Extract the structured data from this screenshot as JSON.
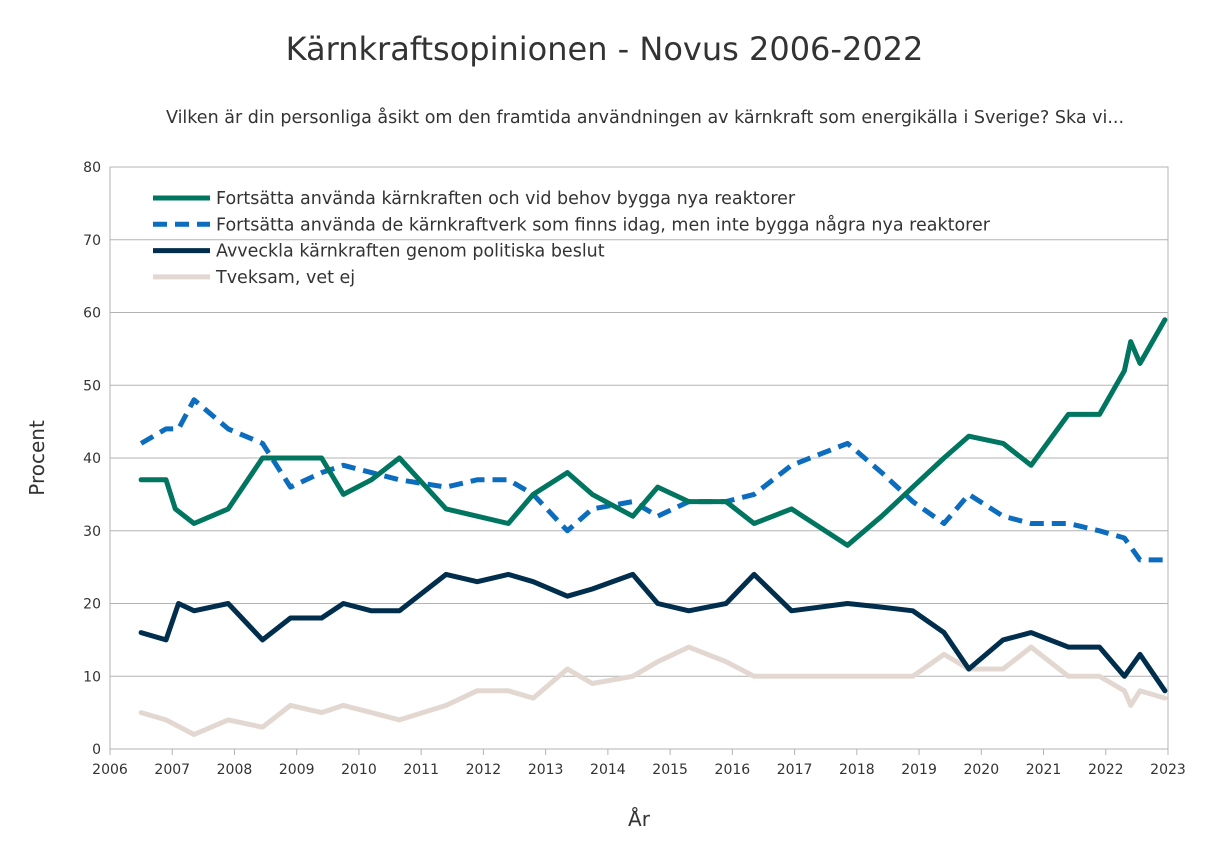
{
  "chart_data": {
    "type": "line",
    "title": "Kärnkraftsopinionen - Novus 2006-2022",
    "subtitle": "Vilken är din personliga åsikt om den framtida användningen av kärnkraft som energikälla i Sverige? Ska vi...",
    "xlabel": "År",
    "ylabel": "Procent",
    "xlim": [
      2006,
      2023
    ],
    "ylim": [
      0,
      80
    ],
    "x_ticks": [
      "2006",
      "2007",
      "2008",
      "2009",
      "2010",
      "2011",
      "2012",
      "2013",
      "2014",
      "2015",
      "2016",
      "2017",
      "2018",
      "2019",
      "2020",
      "2021",
      "2022",
      "2023"
    ],
    "y_ticks": [
      "0",
      "10",
      "20",
      "30",
      "40",
      "50",
      "60",
      "70",
      "80"
    ],
    "grid": true,
    "legend_position": "top-left",
    "series": [
      {
        "name": "Fortsätta använda kärnkraften och vid behov bygga nya reaktorer",
        "color": "#007560",
        "style": "solid",
        "x": [
          2006.5,
          2006.9,
          2007.05,
          2007.35,
          2007.9,
          2008.45,
          2008.8,
          2009.4,
          2009.75,
          2010.2,
          2010.65,
          2011.4,
          2011.9,
          2012.4,
          2012.8,
          2013.35,
          2013.75,
          2014.4,
          2014.8,
          2015.3,
          2015.9,
          2016.35,
          2016.95,
          2017.85,
          2018.4,
          2018.9,
          2019.4,
          2019.8,
          2020.35,
          2020.8,
          2021.4,
          2021.9,
          2022.3,
          2022.4,
          2022.55,
          2022.95
        ],
        "y": [
          37,
          37,
          33,
          31,
          33,
          40,
          40,
          40,
          35,
          37,
          40,
          33,
          32,
          31,
          35,
          38,
          35,
          32,
          36,
          34,
          34,
          31,
          33,
          28,
          32,
          36,
          40,
          43,
          42,
          39,
          46,
          46,
          52,
          56,
          53,
          59
        ]
      },
      {
        "name": "Fortsätta använda de kärnkraftverk som finns idag, men inte bygga några nya reaktorer",
        "color": "#0c6dbf",
        "style": "dashed",
        "x": [
          2006.5,
          2006.9,
          2007.1,
          2007.35,
          2007.9,
          2008.45,
          2008.9,
          2009.4,
          2009.75,
          2010.2,
          2010.65,
          2011.4,
          2011.9,
          2012.4,
          2012.8,
          2013.35,
          2013.75,
          2014.4,
          2014.8,
          2015.3,
          2015.9,
          2016.35,
          2016.95,
          2017.85,
          2018.4,
          2018.9,
          2019.4,
          2019.8,
          2020.35,
          2020.8,
          2021.4,
          2021.9,
          2022.3,
          2022.55,
          2022.95
        ],
        "y": [
          42,
          44,
          44,
          48,
          44,
          42,
          36,
          38,
          39,
          38,
          37,
          36,
          37,
          37,
          35,
          30,
          33,
          34,
          32,
          34,
          34,
          35,
          39,
          42,
          38,
          34,
          31,
          35,
          32,
          31,
          31,
          30,
          29,
          26,
          26
        ]
      },
      {
        "name": "Avveckla kärnkraften genom politiska beslut",
        "color": "#002e4c",
        "style": "solid",
        "x": [
          2006.5,
          2006.9,
          2007.1,
          2007.35,
          2007.9,
          2008.45,
          2008.9,
          2009.4,
          2009.75,
          2010.2,
          2010.65,
          2011.4,
          2011.9,
          2012.4,
          2012.8,
          2013.35,
          2013.75,
          2014.4,
          2014.8,
          2015.3,
          2015.9,
          2016.35,
          2016.95,
          2017.85,
          2018.4,
          2018.9,
          2019.4,
          2019.8,
          2020.35,
          2020.8,
          2021.4,
          2021.9,
          2022.3,
          2022.55,
          2022.95
        ],
        "y": [
          16,
          15,
          20,
          19,
          20,
          15,
          18,
          18,
          20,
          19,
          19,
          24,
          23,
          24,
          23,
          21,
          22,
          24,
          20,
          19,
          20,
          24,
          19,
          20,
          19.5,
          19,
          16,
          11,
          15,
          16,
          14,
          14,
          10,
          13,
          8
        ]
      },
      {
        "name": "Tveksam, vet ej",
        "color": "#e3d8d1",
        "style": "solid",
        "x": [
          2006.5,
          2006.9,
          2007.35,
          2007.9,
          2008.45,
          2008.9,
          2009.4,
          2009.75,
          2010.2,
          2010.65,
          2011.4,
          2011.9,
          2012.4,
          2012.8,
          2013.35,
          2013.75,
          2014.4,
          2014.8,
          2015.3,
          2015.9,
          2016.35,
          2016.95,
          2017.85,
          2018.4,
          2018.9,
          2019.4,
          2019.8,
          2020.35,
          2020.8,
          2021.4,
          2021.9,
          2022.3,
          2022.4,
          2022.55,
          2022.95
        ],
        "y": [
          5,
          4,
          2,
          4,
          3,
          6,
          5,
          6,
          5,
          4,
          6,
          8,
          8,
          7,
          11,
          9,
          10,
          12,
          14,
          12,
          10,
          10,
          10,
          10,
          10,
          13,
          11,
          11,
          14,
          10,
          10,
          8,
          6,
          8,
          7
        ]
      }
    ]
  }
}
